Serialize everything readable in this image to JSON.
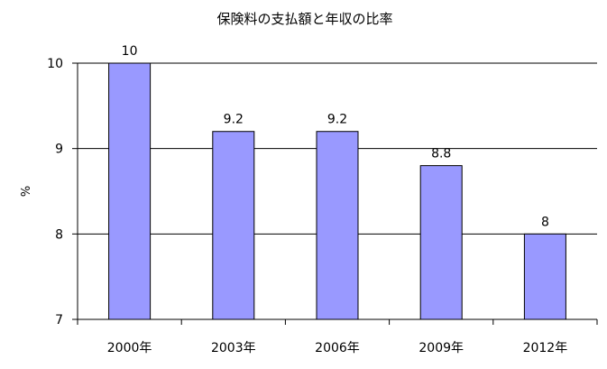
{
  "chart_data": {
    "type": "bar",
    "title": "保険料の支払額と年収の比率",
    "xlabel": "",
    "ylabel": "%",
    "categories": [
      "2000年",
      "2003年",
      "2006年",
      "2009年",
      "2012年"
    ],
    "values": [
      10,
      9.2,
      9.2,
      8.8,
      8
    ],
    "data_labels": [
      "10",
      "9.2",
      "9.2",
      "8.8",
      "8"
    ],
    "ylim": [
      7,
      10
    ],
    "yticks": [
      7,
      8,
      9,
      10
    ],
    "ytick_labels": [
      "7",
      "8",
      "9",
      "10"
    ],
    "grid": true,
    "legend": "none",
    "bar_color": "#9999ff",
    "bar_edge_color": "#000000"
  }
}
